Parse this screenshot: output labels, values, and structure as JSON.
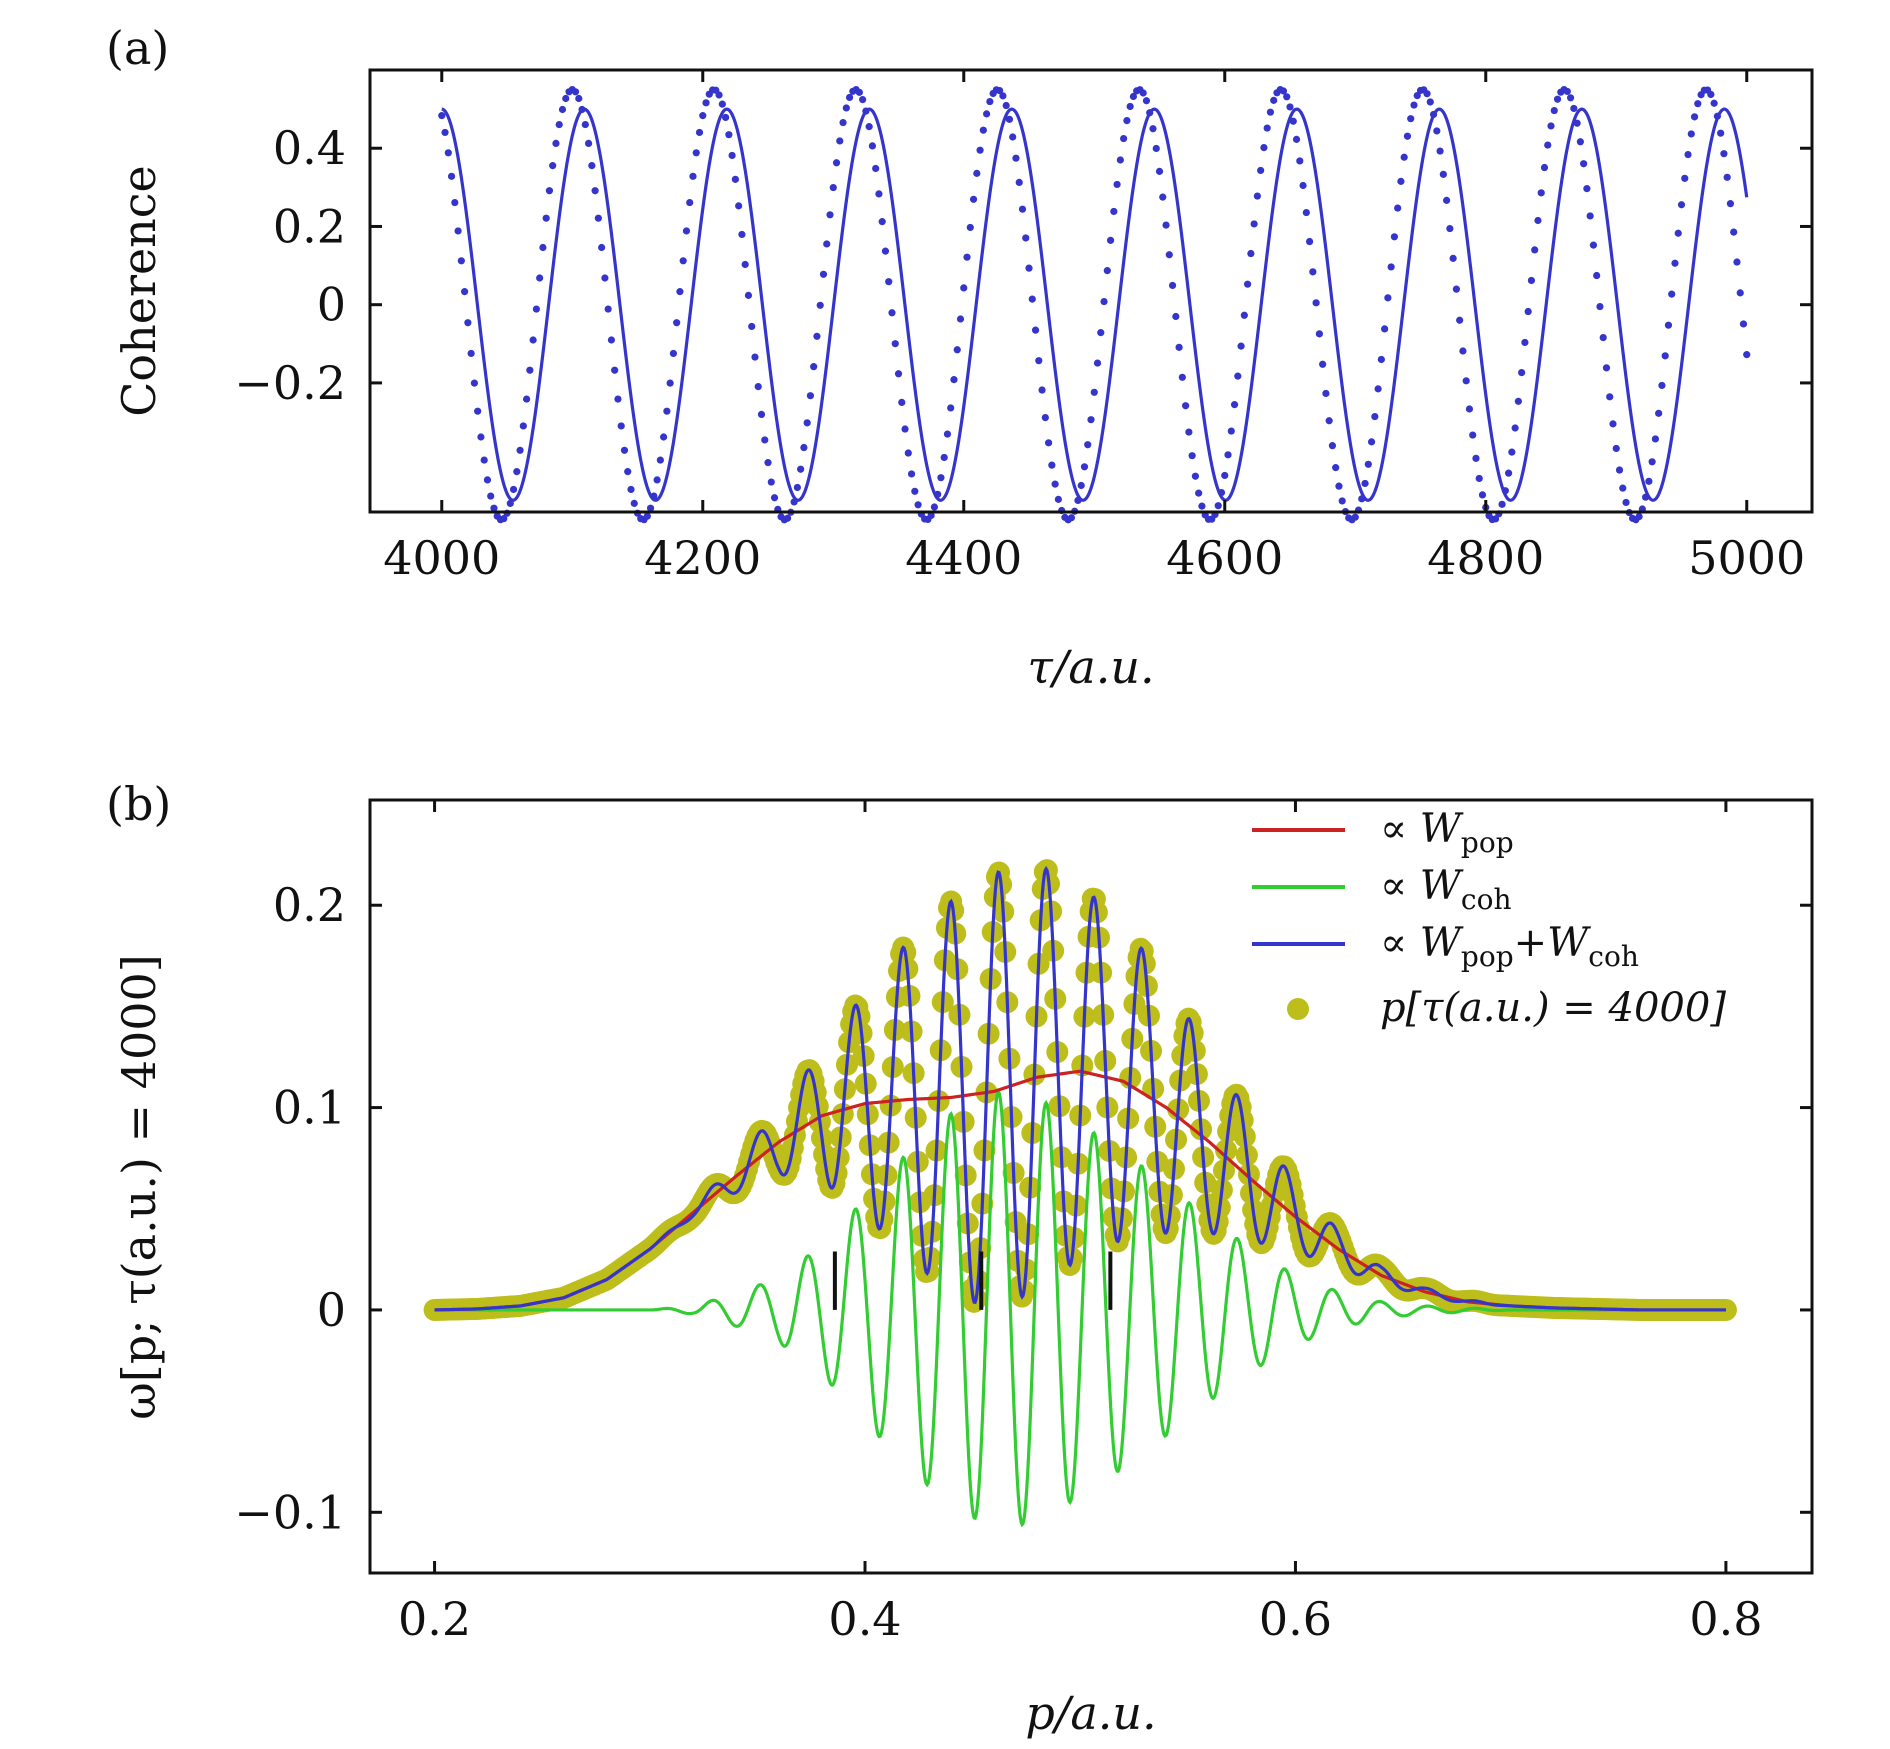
{
  "colors": {
    "blue": "#3535cc",
    "red": "#cc2222",
    "green": "#33cc33",
    "olive": "#bdbd1c",
    "axis": "#111111"
  },
  "chart_data": [
    {
      "panel": "(a)",
      "type": "line",
      "xlabel": "τ/a.u.",
      "ylabel": "Coherence",
      "xlim": [
        3945,
        5050
      ],
      "ylim": [
        -0.53,
        0.6
      ],
      "xticks": [
        4000,
        4200,
        4400,
        4600,
        4800,
        5000
      ],
      "xtick_labels": [
        "4000",
        "4200",
        "4400",
        "4600",
        "4800",
        "5000"
      ],
      "yticks": [
        0.4,
        0.2,
        0,
        -0.2
      ],
      "ytick_labels": [
        "0.4",
        "0.2",
        "0",
        "−0.2"
      ],
      "x_range": [
        4000,
        5000
      ],
      "series": [
        {
          "style": "solid",
          "color": "#3535cc",
          "model": "cosine",
          "amplitude": 0.5,
          "period": 109.2,
          "phase_ref_x": 4000,
          "phase_ref_y": 0.5,
          "offset": 0.0
        },
        {
          "style": "dotted",
          "color": "#3535cc",
          "model": "cosine",
          "amplitude": 0.55,
          "period": 108.6,
          "phase_ref_x": 4100,
          "phase_ref_y": 0.55,
          "offset": 0.0,
          "x_start": 4000,
          "x_end": 5000,
          "points": 400
        }
      ]
    },
    {
      "panel": "(b)",
      "type": "line",
      "xlabel": "p/a.u.",
      "ylabel": "ω[p; τ(a.u.) = 4000]",
      "xlim": [
        0.17,
        0.84
      ],
      "ylim": [
        -0.13,
        0.252
      ],
      "xticks": [
        0.2,
        0.4,
        0.6,
        0.8
      ],
      "xtick_labels": [
        "0.2",
        "0.4",
        "0.6",
        "0.8"
      ],
      "yticks": [
        0.2,
        0.1,
        0,
        -0.1
      ],
      "ytick_labels": [
        "0.2",
        "0.1",
        "0",
        "−0.1"
      ],
      "x_range": [
        0.2,
        0.8
      ],
      "legend": {
        "placement": "top-right",
        "entries": [
          {
            "symbol": "line",
            "color": "#cc2222",
            "prefix": "∝",
            "main": "W",
            "sub": "pop",
            "rest": ""
          },
          {
            "symbol": "line",
            "color": "#33cc33",
            "prefix": "∝",
            "main": "W",
            "sub": "coh",
            "rest": ""
          },
          {
            "symbol": "line",
            "color": "#3535cc",
            "prefix": "∝",
            "main": "W",
            "sub": "pop",
            "rest": "+W",
            "sub2": "coh"
          },
          {
            "symbol": "dot",
            "color": "#bdbd1c",
            "prefix": "",
            "main": "p[τ(a.u.) = 4000]",
            "sub": "",
            "rest": ""
          }
        ]
      },
      "series": [
        {
          "name": "∝ W_pop",
          "color": "#cc2222",
          "points": [
            [
              0.2,
              0.0
            ],
            [
              0.22,
              0.0005
            ],
            [
              0.24,
              0.002
            ],
            [
              0.26,
              0.006
            ],
            [
              0.28,
              0.015
            ],
            [
              0.3,
              0.03
            ],
            [
              0.32,
              0.048
            ],
            [
              0.34,
              0.066
            ],
            [
              0.36,
              0.083
            ],
            [
              0.38,
              0.096
            ],
            [
              0.4,
              0.102
            ],
            [
              0.42,
              0.104
            ],
            [
              0.44,
              0.105
            ],
            [
              0.46,
              0.108
            ],
            [
              0.48,
              0.115
            ],
            [
              0.5,
              0.118
            ],
            [
              0.52,
              0.113
            ],
            [
              0.54,
              0.1
            ],
            [
              0.56,
              0.083
            ],
            [
              0.58,
              0.064
            ],
            [
              0.6,
              0.046
            ],
            [
              0.62,
              0.03
            ],
            [
              0.64,
              0.017
            ],
            [
              0.66,
              0.009
            ],
            [
              0.68,
              0.004
            ],
            [
              0.7,
              0.002
            ],
            [
              0.72,
              0.001
            ],
            [
              0.76,
              0.0
            ],
            [
              0.8,
              0.0
            ]
          ]
        },
        {
          "name": "∝ W_coh",
          "color": "#33cc33",
          "model": "envelope_oscillation",
          "center": 0.462,
          "envelope_peak": 0.105,
          "envelope_width": 0.058,
          "period": 0.0222,
          "phase_ref": 0.462,
          "envelope_points": [
            [
              0.2,
              0.0
            ],
            [
              0.3,
              0.0
            ],
            [
              0.32,
              0.002
            ],
            [
              0.34,
              0.008
            ],
            [
              0.36,
              0.016
            ],
            [
              0.38,
              0.032
            ],
            [
              0.4,
              0.055
            ],
            [
              0.42,
              0.078
            ],
            [
              0.44,
              0.097
            ],
            [
              0.46,
              0.108
            ],
            [
              0.48,
              0.105
            ],
            [
              0.5,
              0.092
            ],
            [
              0.52,
              0.078
            ],
            [
              0.54,
              0.062
            ],
            [
              0.56,
              0.045
            ],
            [
              0.58,
              0.03
            ],
            [
              0.6,
              0.017
            ],
            [
              0.62,
              0.009
            ],
            [
              0.64,
              0.004
            ],
            [
              0.66,
              0.002
            ],
            [
              0.7,
              0.0
            ],
            [
              0.8,
              0.0
            ]
          ],
          "x_start": 0.2,
          "x_end": 0.8,
          "samples": 1400
        },
        {
          "name": "∝ W_pop + W_coh",
          "color": "#3535cc",
          "model": "sum_of_previous_two"
        },
        {
          "name": "p[τ(a.u.) = 4000]",
          "color": "#bdbd1c",
          "style": "dots",
          "model": "sum_of_previous_two",
          "x_start": 0.2,
          "x_end": 0.8,
          "points": 620
        }
      ],
      "markers": [
        {
          "x": 0.386,
          "y_from": 0.0,
          "y_to": 0.02
        },
        {
          "x": 0.454,
          "y_from": 0.0,
          "y_to": 0.02
        },
        {
          "x": 0.514,
          "y_from": 0.0,
          "y_to": 0.02
        }
      ]
    }
  ]
}
